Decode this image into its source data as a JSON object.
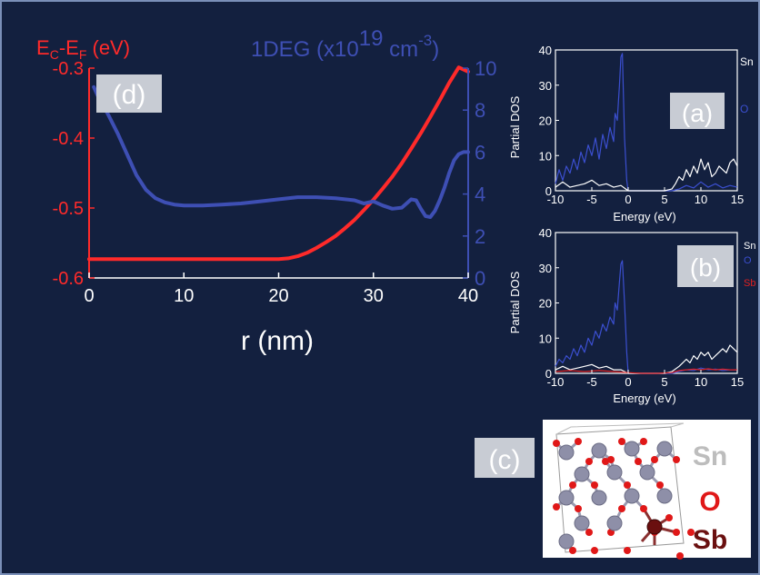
{
  "colors": {
    "background": "#13203f",
    "potential": "#ff2a2a",
    "density": "#3e4fb4",
    "white_text": "#ffffff",
    "panel_label_bg": "#c8ccd4",
    "dos_sn": "#ffffff",
    "dos_o": "#3b4fd0",
    "dos_sb": "#e02020",
    "crystal_sn": "#8e8fa8",
    "crystal_o": "#e01818",
    "crystal_sb": "#6a0f0f"
  },
  "panel_labels": {
    "a": "(a)",
    "b": "(b)",
    "c": "(c)",
    "d": "(d)"
  },
  "chart_data": [
    {
      "id": "d",
      "type": "line",
      "xlabel": "r (nm)",
      "xlim": [
        0,
        40
      ],
      "xticks": [
        0,
        10,
        20,
        30,
        40
      ],
      "y_left": {
        "label_main": "E",
        "label_sub1": "C",
        "label_mid": "-E",
        "label_sub2": "F",
        "label_unit": " (eV)",
        "lim": [
          -0.6,
          -0.3
        ],
        "ticks": [
          "-0.3",
          "-0.4",
          "-0.5",
          "-0.6"
        ],
        "tick_values": [
          -0.3,
          -0.4,
          -0.5,
          -0.6
        ]
      },
      "y_right": {
        "label_main": "1DEG (x10",
        "label_sup1": "19",
        "label_mid": " cm",
        "label_sup2": "-3",
        "label_end": ")",
        "lim": [
          0,
          10
        ],
        "ticks": [
          "0",
          "2",
          "4",
          "6",
          "8",
          "10"
        ],
        "tick_values": [
          0,
          2,
          4,
          6,
          8,
          10
        ]
      },
      "series": [
        {
          "axis": "left",
          "color": "#ff2a2a",
          "x": [
            0,
            4,
            8,
            12,
            16,
            20,
            21,
            22,
            23,
            24,
            25,
            26,
            27,
            28,
            29,
            30,
            31,
            32,
            33,
            34,
            35,
            36,
            37,
            38,
            39,
            40
          ],
          "y": [
            -0.573,
            -0.573,
            -0.573,
            -0.573,
            -0.573,
            -0.573,
            -0.572,
            -0.569,
            -0.564,
            -0.557,
            -0.549,
            -0.54,
            -0.529,
            -0.517,
            -0.503,
            -0.488,
            -0.472,
            -0.455,
            -0.436,
            -0.415,
            -0.393,
            -0.37,
            -0.346,
            -0.321,
            -0.299,
            -0.305
          ]
        },
        {
          "axis": "right",
          "color": "#3e4fb4",
          "x": [
            0.5,
            1,
            2,
            3,
            4,
            5,
            6,
            7,
            8,
            9,
            10,
            12,
            14,
            16,
            18,
            20,
            22,
            24,
            26,
            28,
            29,
            30,
            31,
            32,
            33,
            34,
            34.5,
            35,
            35.5,
            36,
            36.5,
            37,
            37.5,
            38,
            38.5,
            39,
            39.5,
            40
          ],
          "y": [
            9.1,
            8.6,
            7.8,
            6.9,
            5.9,
            4.9,
            4.2,
            3.8,
            3.6,
            3.5,
            3.45,
            3.45,
            3.5,
            3.55,
            3.65,
            3.75,
            3.85,
            3.85,
            3.8,
            3.7,
            3.55,
            3.65,
            3.45,
            3.3,
            3.35,
            3.75,
            3.7,
            3.3,
            2.95,
            2.9,
            3.2,
            3.7,
            4.3,
            5.0,
            5.6,
            5.9,
            6.0,
            6.0
          ]
        }
      ]
    },
    {
      "id": "a",
      "type": "line",
      "ylabel": "Partial DOS",
      "xlabel": "Energy (eV)",
      "xlim": [
        -10,
        15
      ],
      "ylim": [
        0,
        40
      ],
      "xticks": [
        "-10",
        "-5",
        "0",
        "5",
        "10",
        "15"
      ],
      "xtick_values": [
        -10,
        -5,
        0,
        5,
        10,
        15
      ],
      "yticks": [
        "0",
        "10",
        "20",
        "30",
        "40"
      ],
      "ytick_values": [
        0,
        10,
        20,
        30,
        40
      ],
      "legend": [
        "Sn",
        "O"
      ],
      "series": [
        {
          "name": "O",
          "color": "#3b4fd0",
          "x": [
            -10,
            -9.5,
            -9,
            -8.5,
            -8,
            -7.5,
            -7,
            -6.5,
            -6,
            -5.5,
            -5,
            -4.5,
            -4,
            -3.5,
            -3,
            -2.5,
            -2,
            -1.8,
            -1.5,
            -1.2,
            -1,
            -0.8,
            -0.5,
            -0.2,
            0,
            0.5,
            1,
            2,
            3,
            4,
            5,
            6,
            7,
            8,
            9,
            10,
            11,
            12,
            13,
            14,
            15
          ],
          "y": [
            2,
            6,
            3,
            7,
            5,
            9,
            6,
            11,
            8,
            13,
            10,
            15,
            9,
            16,
            12,
            18,
            14,
            22,
            20,
            30,
            38,
            39,
            15,
            3,
            0,
            0,
            0,
            0,
            0,
            0,
            0,
            0,
            0.5,
            1.5,
            0.8,
            2.5,
            1,
            2,
            0.8,
            1.5,
            1
          ]
        },
        {
          "name": "Sn",
          "color": "#ffffff",
          "x": [
            -10,
            -9,
            -8,
            -7,
            -6,
            -5,
            -4,
            -3,
            -2,
            -1,
            0,
            1,
            2,
            3,
            4,
            5,
            6,
            6.5,
            7,
            7.5,
            8,
            8.5,
            9,
            9.5,
            10,
            10.5,
            11,
            11.5,
            12,
            12.5,
            13,
            13.5,
            14,
            14.5,
            15
          ],
          "y": [
            1,
            2.5,
            1,
            1.5,
            2,
            3,
            1.5,
            2,
            1,
            1.5,
            0,
            0,
            0,
            0,
            0,
            0,
            0.5,
            2,
            4,
            3,
            6,
            4,
            7,
            5,
            9,
            6,
            8,
            4,
            5,
            7,
            6,
            5,
            8,
            9,
            7
          ]
        }
      ]
    },
    {
      "id": "b",
      "type": "line",
      "ylabel": "Partial DOS",
      "xlabel": "Energy (eV)",
      "xlim": [
        -10,
        15
      ],
      "ylim": [
        0,
        40
      ],
      "xticks": [
        "-10",
        "-5",
        "0",
        "5",
        "10",
        "15"
      ],
      "xtick_values": [
        -10,
        -5,
        0,
        5,
        10,
        15
      ],
      "yticks": [
        "0",
        "10",
        "20",
        "30",
        "40"
      ],
      "ytick_values": [
        0,
        10,
        20,
        30,
        40
      ],
      "legend": [
        "Sn",
        "O",
        "Sb"
      ],
      "series": [
        {
          "name": "O",
          "color": "#3b4fd0",
          "x": [
            -10,
            -9.5,
            -9,
            -8.5,
            -8,
            -7.5,
            -7,
            -6.5,
            -6,
            -5.5,
            -5,
            -4.5,
            -4,
            -3.5,
            -3,
            -2.5,
            -2,
            -1.8,
            -1.5,
            -1.2,
            -1,
            -0.8,
            -0.5,
            -0.2,
            0,
            1,
            2,
            3,
            4,
            5,
            6,
            7,
            8,
            9,
            10,
            11,
            12,
            13,
            14,
            15
          ],
          "y": [
            2,
            4,
            3,
            5,
            4,
            7,
            5,
            8,
            6,
            10,
            8,
            12,
            10,
            14,
            12,
            16,
            14,
            20,
            18,
            26,
            31,
            32,
            20,
            6,
            0,
            0,
            0,
            0,
            0,
            0,
            0,
            0.5,
            1,
            0.8,
            1.5,
            1,
            1.2,
            0.8,
            1,
            1
          ]
        },
        {
          "name": "Sn",
          "color": "#ffffff",
          "x": [
            -10,
            -9,
            -8,
            -7,
            -6,
            -5,
            -4,
            -3,
            -2,
            -1,
            0,
            1,
            2,
            3,
            4,
            5,
            6,
            7,
            7.5,
            8,
            8.5,
            9,
            9.5,
            10,
            10.5,
            11,
            11.5,
            12,
            12.5,
            13,
            13.5,
            14,
            14.5,
            15
          ],
          "y": [
            1,
            2,
            1,
            1.5,
            2,
            2.5,
            1.5,
            2,
            1,
            1,
            0,
            0,
            0,
            0,
            0,
            0,
            0.5,
            2,
            3,
            4,
            3,
            5,
            4,
            6,
            5,
            6,
            4,
            5,
            6,
            7,
            6,
            8,
            7,
            6
          ]
        },
        {
          "name": "Sb",
          "color": "#e02020",
          "x": [
            -10,
            -8,
            -6,
            -4,
            -2,
            0,
            2,
            4,
            6,
            7,
            8,
            9,
            10,
            11,
            12,
            13,
            14,
            15
          ],
          "y": [
            0.5,
            0.8,
            0.5,
            0.8,
            0.5,
            0.2,
            0,
            0,
            0.2,
            0.8,
            1,
            1.2,
            1,
            1.3,
            1,
            1.2,
            1,
            1
          ]
        }
      ]
    }
  ],
  "crystal": {
    "labels": [
      "Sn",
      "O",
      "Sb"
    ]
  }
}
